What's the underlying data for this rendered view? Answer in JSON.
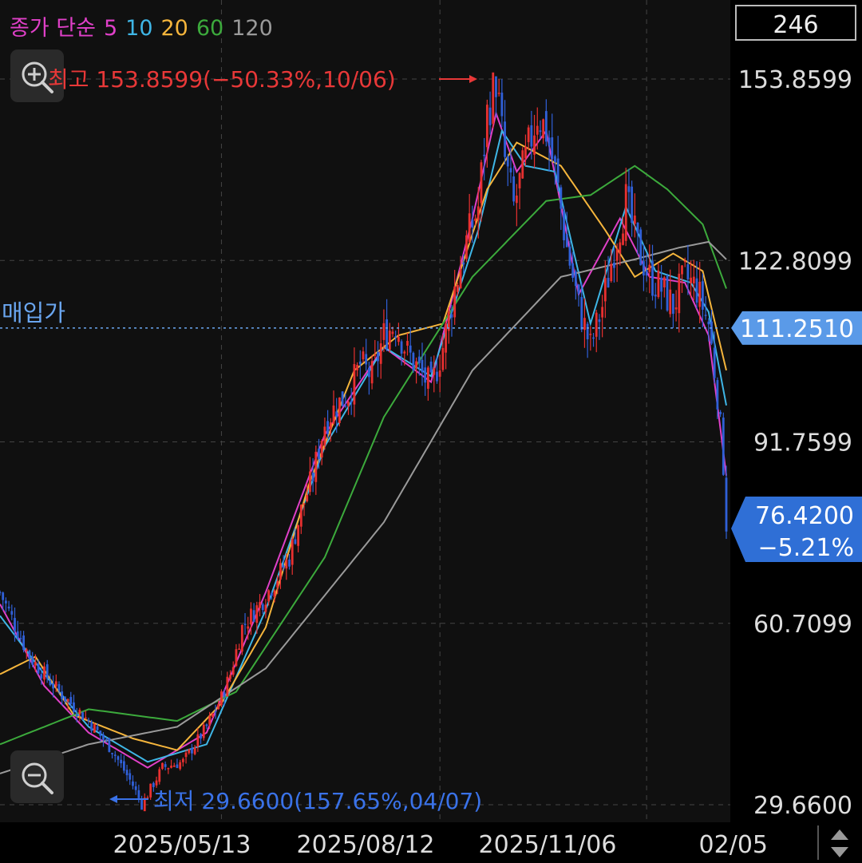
{
  "legend": {
    "label": "종가 단순",
    "items": [
      {
        "period": "5",
        "color": "#e040c8"
      },
      {
        "period": "10",
        "color": "#3fb6e6"
      },
      {
        "period": "20",
        "color": "#f5b53c"
      },
      {
        "period": "60",
        "color": "#3caa3c"
      },
      {
        "period": "120",
        "color": "#9a9a9a"
      }
    ]
  },
  "count_badge": "246",
  "annotations": {
    "high": "최고 153.8599(−50.33%,10/06)",
    "low": "최저 29.6600(157.65%,04/07)",
    "purchase_label": "매입가"
  },
  "icons": {
    "zoom_in": "zoom-in-icon",
    "zoom_out": "zoom-out-icon",
    "scroll": "up-down-arrow-icon"
  },
  "colors": {
    "background": "#000000",
    "plot_bg": "#101010",
    "up": "#e83030",
    "down": "#3060d8",
    "high_text": "#e83838",
    "low_text": "#3a72e8",
    "badge": "#2f6fd6",
    "purchase_badge": "#5a9ae8"
  },
  "chart_data": {
    "type": "candlestick",
    "y_ticks": [
      "153.8599",
      "122.8099",
      "91.7599",
      "60.7099",
      "29.6600"
    ],
    "y_tick_values": [
      153.8599,
      122.8099,
      91.7599,
      60.7099,
      29.66
    ],
    "ylim": [
      29.66,
      153.8599
    ],
    "x_ticks": [
      "2025/05/13",
      "2025/08/12",
      "2025/11/06",
      "02/05"
    ],
    "grid": true,
    "high": {
      "value": 153.8599,
      "date": "10/06",
      "change": "−50.33%"
    },
    "low": {
      "value": 29.66,
      "date": "04/07",
      "change": "157.65%"
    },
    "purchase_price": {
      "label": "매입가",
      "value": 111.251,
      "display": "111.2510"
    },
    "current_price": {
      "value": 76.42,
      "display": "76.4200",
      "change": "−5.21%"
    },
    "price_path": [
      [
        0,
        66
      ],
      [
        10,
        55
      ],
      [
        20,
        49
      ],
      [
        30,
        44
      ],
      [
        38,
        39
      ],
      [
        45,
        33
      ],
      [
        48,
        29.66
      ],
      [
        55,
        36
      ],
      [
        62,
        37
      ],
      [
        70,
        43
      ],
      [
        75,
        48
      ],
      [
        78,
        52
      ],
      [
        82,
        60
      ],
      [
        88,
        64
      ],
      [
        92,
        67
      ],
      [
        98,
        72
      ],
      [
        102,
        80
      ],
      [
        106,
        86
      ],
      [
        110,
        95
      ],
      [
        114,
        98
      ],
      [
        118,
        100
      ],
      [
        122,
        105
      ],
      [
        126,
        103
      ],
      [
        130,
        110
      ],
      [
        134,
        112
      ],
      [
        138,
        107
      ],
      [
        142,
        104
      ],
      [
        146,
        101
      ],
      [
        150,
        108
      ],
      [
        154,
        118
      ],
      [
        158,
        126
      ],
      [
        162,
        132
      ],
      [
        165,
        148
      ],
      [
        168,
        153.86
      ],
      [
        171,
        140
      ],
      [
        174,
        132
      ],
      [
        178,
        140
      ],
      [
        182,
        148
      ],
      [
        185,
        145
      ],
      [
        188,
        138
      ],
      [
        192,
        125
      ],
      [
        196,
        115
      ],
      [
        200,
        108
      ],
      [
        204,
        115
      ],
      [
        208,
        125
      ],
      [
        212,
        133
      ],
      [
        216,
        125
      ],
      [
        220,
        120
      ],
      [
        224,
        118
      ],
      [
        228,
        115
      ],
      [
        232,
        120
      ],
      [
        236,
        118
      ],
      [
        240,
        112
      ],
      [
        243,
        100
      ],
      [
        245,
        88
      ],
      [
        246,
        76.42
      ]
    ],
    "ma": [
      {
        "period": 5,
        "color": "#e040c8",
        "path": [
          [
            0,
            64
          ],
          [
            15,
            50
          ],
          [
            30,
            42
          ],
          [
            50,
            36
          ],
          [
            70,
            42
          ],
          [
            90,
            66
          ],
          [
            110,
            93
          ],
          [
            130,
            108
          ],
          [
            146,
            102
          ],
          [
            160,
            130
          ],
          [
            168,
            148
          ],
          [
            175,
            138
          ],
          [
            185,
            145
          ],
          [
            196,
            117
          ],
          [
            210,
            130
          ],
          [
            220,
            120
          ],
          [
            232,
            119
          ],
          [
            240,
            110
          ],
          [
            246,
            86
          ]
        ]
      },
      {
        "period": 10,
        "color": "#3fb6e6",
        "path": [
          [
            0,
            62
          ],
          [
            15,
            52
          ],
          [
            30,
            43
          ],
          [
            50,
            37
          ],
          [
            70,
            40
          ],
          [
            90,
            63
          ],
          [
            110,
            91
          ],
          [
            130,
            108
          ],
          [
            146,
            103
          ],
          [
            162,
            128
          ],
          [
            170,
            145
          ],
          [
            178,
            139
          ],
          [
            188,
            138
          ],
          [
            200,
            112
          ],
          [
            212,
            132
          ],
          [
            222,
            121
          ],
          [
            234,
            119
          ],
          [
            240,
            114
          ],
          [
            246,
            98
          ]
        ]
      },
      {
        "period": 20,
        "color": "#f5b53c",
        "path": [
          [
            0,
            52
          ],
          [
            12,
            55
          ],
          [
            25,
            45
          ],
          [
            45,
            41
          ],
          [
            60,
            39
          ],
          [
            75,
            47
          ],
          [
            90,
            60
          ],
          [
            105,
            85
          ],
          [
            120,
            104
          ],
          [
            135,
            110
          ],
          [
            150,
            112
          ],
          [
            165,
            135
          ],
          [
            175,
            143
          ],
          [
            190,
            139
          ],
          [
            205,
            128
          ],
          [
            215,
            120
          ],
          [
            228,
            124
          ],
          [
            238,
            121
          ],
          [
            246,
            104
          ]
        ]
      },
      {
        "period": 60,
        "color": "#3caa3c",
        "path": [
          [
            0,
            40
          ],
          [
            30,
            46
          ],
          [
            60,
            44
          ],
          [
            80,
            49
          ],
          [
            110,
            72
          ],
          [
            130,
            96
          ],
          [
            160,
            120
          ],
          [
            185,
            133
          ],
          [
            200,
            134
          ],
          [
            215,
            139
          ],
          [
            226,
            135
          ],
          [
            238,
            129
          ],
          [
            246,
            118
          ]
        ]
      },
      {
        "period": 120,
        "color": "#9a9a9a",
        "path": [
          [
            0,
            35
          ],
          [
            30,
            40
          ],
          [
            60,
            43
          ],
          [
            90,
            53
          ],
          [
            130,
            78
          ],
          [
            160,
            104
          ],
          [
            190,
            120
          ],
          [
            215,
            123
          ],
          [
            230,
            125
          ],
          [
            240,
            126
          ],
          [
            246,
            123
          ]
        ]
      }
    ]
  }
}
